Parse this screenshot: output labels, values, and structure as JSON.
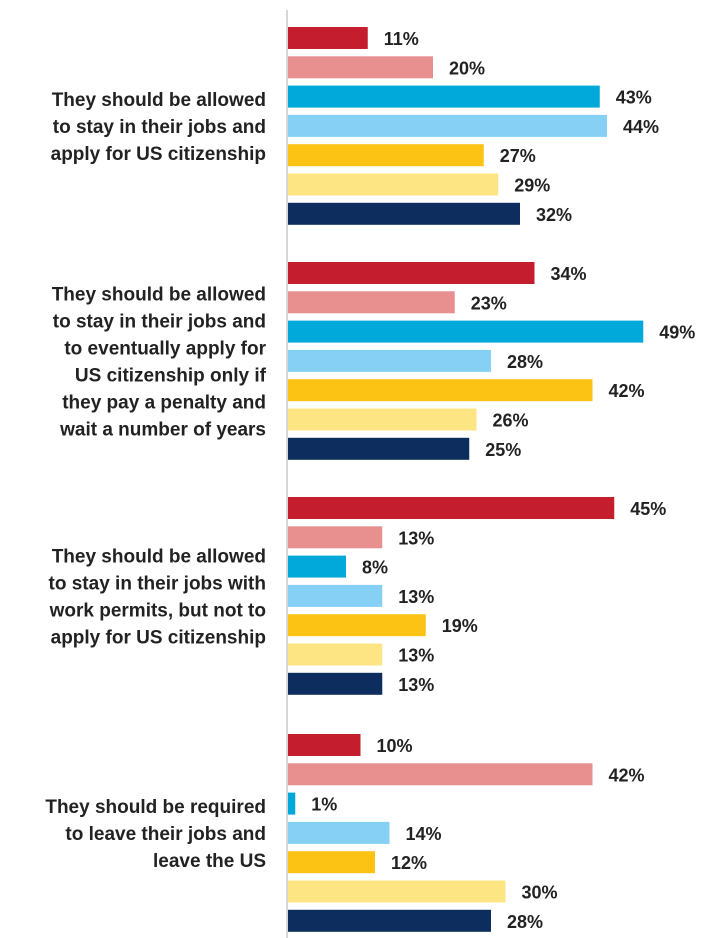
{
  "chart_data": {
    "type": "bar",
    "orientation": "horizontal",
    "title": "",
    "xlabel": "",
    "ylabel": "",
    "xlim": [
      0,
      50
    ],
    "grid": false,
    "legend": "none",
    "value_suffix": "%",
    "categories": [
      [
        "They should be allowed",
        "to stay in their jobs and",
        "apply for US citizenship"
      ],
      [
        "They should be allowed",
        "to stay in their jobs and",
        "to eventually apply for",
        "US citizenship only if",
        "they pay a penalty and",
        "wait a number of years"
      ],
      [
        "They should be allowed",
        "to stay in their jobs with",
        "work permits, but not to",
        "apply for US citizenship"
      ],
      [
        "They should be required",
        "to leave their jobs and",
        "leave the US"
      ]
    ],
    "series": [
      {
        "color": "#c41e2e",
        "values": [
          11,
          34,
          45,
          10
        ]
      },
      {
        "color": "#e88f90",
        "values": [
          20,
          23,
          13,
          42
        ]
      },
      {
        "color": "#00a9d9",
        "values": [
          43,
          49,
          8,
          1
        ]
      },
      {
        "color": "#86d0f5",
        "values": [
          44,
          28,
          13,
          14
        ]
      },
      {
        "color": "#fdc314",
        "values": [
          27,
          42,
          19,
          12
        ]
      },
      {
        "color": "#fde583",
        "values": [
          29,
          26,
          13,
          30
        ]
      },
      {
        "color": "#0c2d5e",
        "values": [
          32,
          25,
          13,
          28
        ]
      }
    ]
  }
}
